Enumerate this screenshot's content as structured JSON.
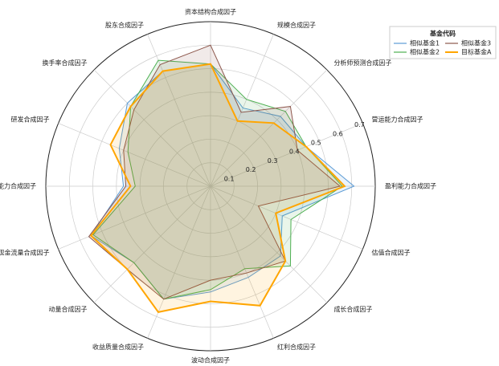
{
  "chart_data": {
    "type": "radar",
    "categories": [
      "资本结构合成因子",
      "规模合成因子",
      "分析师预测合成因子",
      "营运能力合成因子",
      "盈利能力合成因子",
      "估值合成因子",
      "成长合成因子",
      "红利合成因子",
      "波动合成因子",
      "收益质量合成因子",
      "动量合成因子",
      "现金流量合成因子",
      "偿债能力合成因子",
      "研发合成因子",
      "换手率合成因子",
      "股东合成因子"
    ],
    "series": [
      {
        "name": "相似基金1",
        "color": "#5b9bd5",
        "values": [
          0.52,
          0.36,
          0.42,
          0.44,
          0.61,
          0.33,
          0.42,
          0.42,
          0.45,
          0.52,
          0.46,
          0.55,
          0.37,
          0.42,
          0.5,
          0.53
        ]
      },
      {
        "name": "相似基金2",
        "color": "#4caf50",
        "values": [
          0.52,
          0.4,
          0.45,
          0.44,
          0.56,
          0.37,
          0.48,
          0.38,
          0.44,
          0.52,
          0.46,
          0.54,
          0.32,
          0.38,
          0.48,
          0.58
        ]
      },
      {
        "name": "相似基金3",
        "color": "#8c564b",
        "values": [
          0.6,
          0.34,
          0.48,
          0.4,
          0.55,
          0.22,
          0.45,
          0.4,
          0.4,
          0.52,
          0.5,
          0.56,
          0.36,
          0.4,
          0.46,
          0.56
        ]
      },
      {
        "name": "目标基金A",
        "color": "#ffa500",
        "values": [
          0.52,
          0.3,
          0.38,
          0.44,
          0.57,
          0.3,
          0.45,
          0.55,
          0.49,
          0.58,
          0.5,
          0.55,
          0.34,
          0.46,
          0.48,
          0.53
        ]
      }
    ],
    "rlim": [
      0,
      0.7
    ],
    "rticks": [
      0.1,
      0.2,
      0.3,
      0.4,
      0.5,
      0.6,
      0.7
    ],
    "legend_title": "基金代码",
    "legend": "upper right",
    "grid": true
  }
}
